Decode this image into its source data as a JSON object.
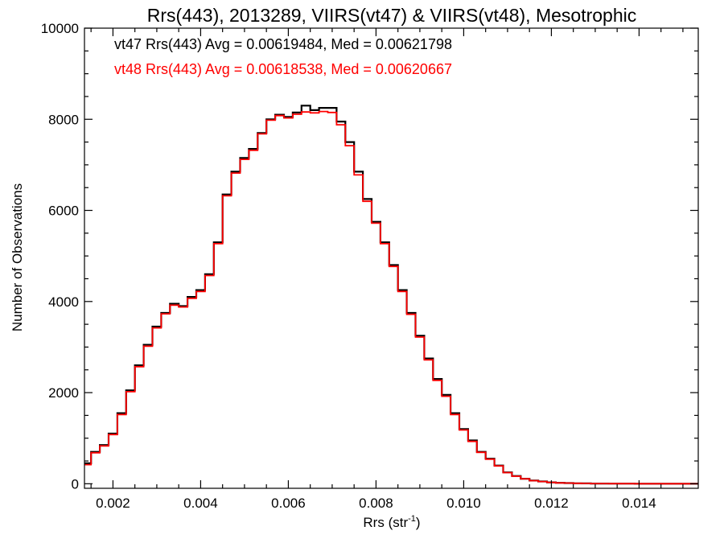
{
  "chart_data": {
    "type": "line",
    "title": "Rrs(443), 2013289, VIIRS(vt47) & VIIRS(vt48), Mesotrophic",
    "xlabel": "Rrs (str",
    "xlabel_sup": "-1",
    "xlabel_end": ")",
    "ylabel": "Number of Observations",
    "xlim": [
      0.00135,
      0.01535
    ],
    "ylim": [
      -100,
      10000
    ],
    "x_ticks": [
      0.002,
      0.004,
      0.006,
      0.008,
      0.01,
      0.012,
      0.014
    ],
    "x_tick_labels": [
      "0.002",
      "0.004",
      "0.006",
      "0.008",
      "0.010",
      "0.012",
      "0.014"
    ],
    "y_ticks": [
      0,
      2000,
      4000,
      6000,
      8000,
      10000
    ],
    "y_tick_labels": [
      "0",
      "2000",
      "4000",
      "6000",
      "8000",
      "10000"
    ],
    "grid": false,
    "step": true,
    "x": [
      0.00135,
      0.0015,
      0.0017,
      0.0019,
      0.0021,
      0.0023,
      0.0025,
      0.0027,
      0.0029,
      0.0031,
      0.0033,
      0.0035,
      0.0037,
      0.0039,
      0.0041,
      0.0043,
      0.0045,
      0.0047,
      0.0049,
      0.0051,
      0.0053,
      0.0055,
      0.0057,
      0.0059,
      0.0061,
      0.0063,
      0.0065,
      0.0067,
      0.0069,
      0.0071,
      0.0073,
      0.0075,
      0.0077,
      0.0079,
      0.0081,
      0.0083,
      0.0085,
      0.0087,
      0.0089,
      0.0091,
      0.0093,
      0.0095,
      0.0097,
      0.0099,
      0.0101,
      0.0103,
      0.0105,
      0.0107,
      0.0109,
      0.0111,
      0.0113,
      0.0115,
      0.0117,
      0.0119,
      0.0121,
      0.0123,
      0.0125,
      0.0127,
      0.0129,
      0.0131,
      0.0133,
      0.0135,
      0.0137,
      0.0139,
      0.0141,
      0.0143,
      0.0145,
      0.0147,
      0.0149,
      0.0151,
      0.0153
    ],
    "series": [
      {
        "name": "vt47",
        "color": "#000000",
        "annotation": "vt47 Rrs(443) Avg = 0.00619484, Med = 0.00621798",
        "values": [
          450,
          700,
          850,
          1100,
          1550,
          2050,
          2600,
          3050,
          3450,
          3750,
          3950,
          3900,
          4100,
          4250,
          4600,
          5300,
          6350,
          6850,
          7150,
          7350,
          7700,
          8000,
          8100,
          8050,
          8150,
          8300,
          8200,
          8250,
          8250,
          7950,
          7500,
          6850,
          6250,
          5750,
          5300,
          4800,
          4250,
          3750,
          3250,
          2750,
          2300,
          1950,
          1550,
          1200,
          950,
          700,
          550,
          400,
          250,
          170,
          110,
          70,
          50,
          30,
          20,
          15,
          10,
          8,
          5,
          4,
          3,
          2,
          2,
          1,
          1,
          1,
          0,
          0,
          0,
          0,
          0
        ]
      },
      {
        "name": "vt48",
        "color": "#ff0000",
        "annotation": "vt48 Rrs(443) Avg = 0.00618538, Med = 0.00620667",
        "values": [
          420,
          680,
          830,
          1080,
          1520,
          2020,
          2570,
          3020,
          3420,
          3730,
          3920,
          3880,
          4070,
          4220,
          4570,
          5270,
          6320,
          6820,
          7120,
          7320,
          7680,
          7980,
          8080,
          8030,
          8110,
          8160,
          8140,
          8170,
          8150,
          7880,
          7420,
          6780,
          6200,
          5720,
          5270,
          4770,
          4220,
          3720,
          3220,
          2720,
          2270,
          1920,
          1520,
          1180,
          930,
          690,
          540,
          390,
          245,
          165,
          108,
          68,
          48,
          29,
          19,
          14,
          9,
          7,
          5,
          4,
          3,
          2,
          2,
          1,
          1,
          1,
          0,
          0,
          0,
          0,
          0
        ]
      }
    ]
  }
}
